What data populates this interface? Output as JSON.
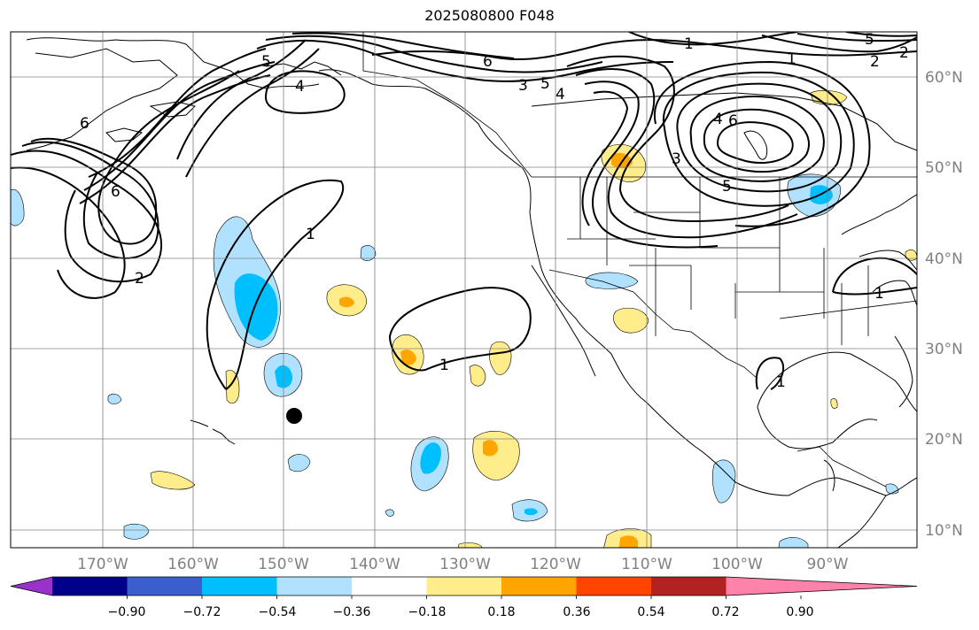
{
  "title": "2025080800 F048",
  "map": {
    "lon_range": [
      -180,
      -80
    ],
    "lat_range": [
      8,
      65
    ],
    "lat_labels": [
      "60°N",
      "50°N",
      "40°N",
      "30°N",
      "20°N",
      "10°N"
    ],
    "lon_labels": [
      "170°W",
      "160°W",
      "150°W",
      "140°W",
      "130°W",
      "120°W",
      "110°W",
      "100°W",
      "90°W"
    ],
    "contour_labels": [
      "1",
      "2",
      "3",
      "4",
      "5",
      "6"
    ],
    "marker": {
      "name": "center-dot",
      "lon": -148,
      "lat": 22.5
    }
  },
  "colorbar": {
    "colors": [
      "#9932cc",
      "#00008b",
      "#3a5fcd",
      "#00bfff",
      "#b0e2ff",
      "#ffffff",
      "#ffec8b",
      "#ffa500",
      "#ff4500",
      "#b22222",
      "#ff82ab"
    ],
    "tick_labels": [
      "−0.90",
      "−0.72",
      "−0.54",
      "−0.36",
      "−0.18",
      "0.18",
      "0.36",
      "0.54",
      "0.72",
      "0.90"
    ]
  }
}
